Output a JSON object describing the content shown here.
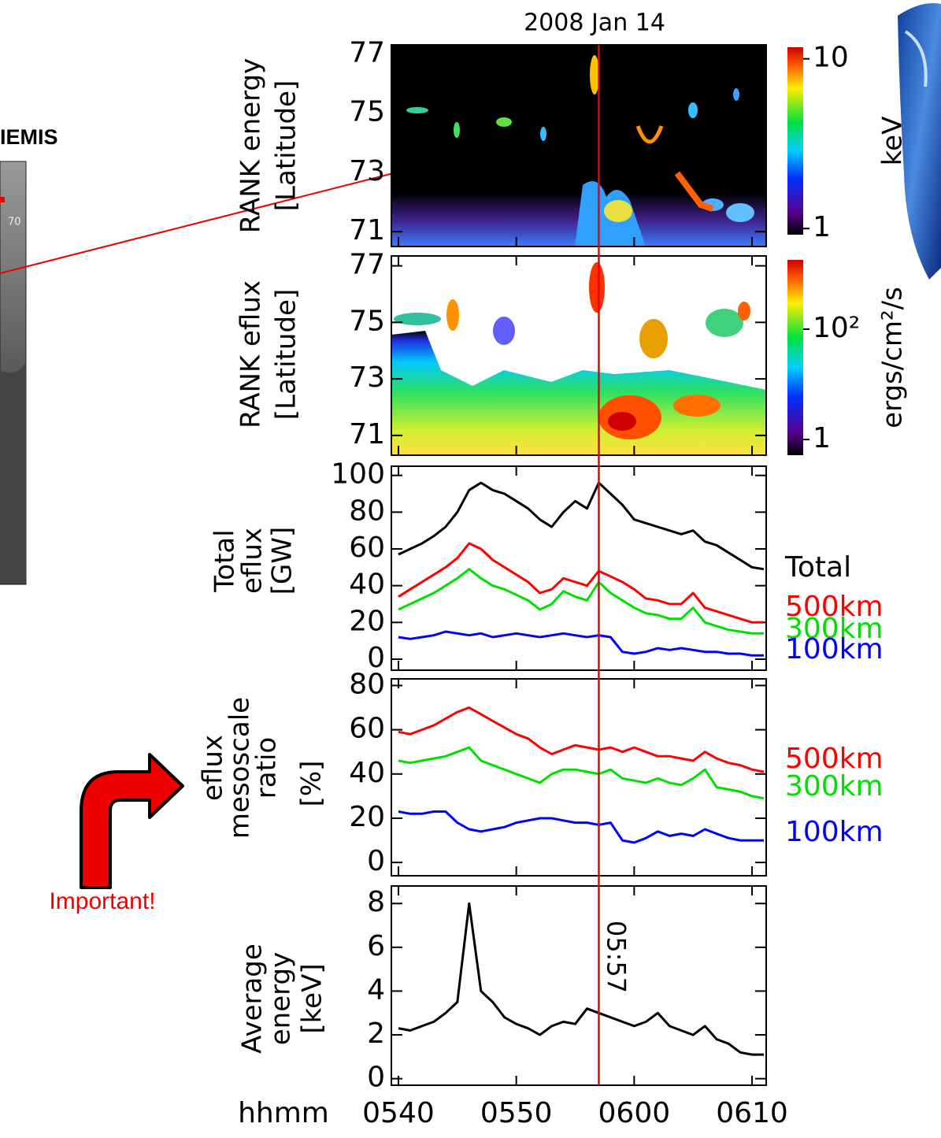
{
  "map": {
    "title": "IEMIS",
    "label": "70"
  },
  "annotation": "Important!",
  "chart_data": [
    {
      "type": "spectrogram",
      "title": "2008 Jan 14",
      "ylabel": [
        "RANK energy",
        "[Latitude]"
      ],
      "ylim": [
        70.5,
        77.3
      ],
      "yticks": [
        71,
        73,
        75,
        77
      ],
      "colorbar": {
        "label": "keV",
        "log": true,
        "lim": [
          0.92,
          11.7
        ],
        "ticks": [
          1,
          10
        ]
      }
    },
    {
      "type": "spectrogram",
      "ylabel": [
        "RANK eflux",
        "[Latitude]"
      ],
      "ylim": [
        70.3,
        77.35
      ],
      "yticks": [
        71,
        73,
        75,
        77
      ],
      "colorbar": {
        "label": "ergs/cm²/s",
        "log": true,
        "lim": [
          0.52,
          1800
        ],
        "ticks": [
          1,
          {
            "value": 100,
            "label": "10²"
          }
        ]
      }
    },
    {
      "type": "line",
      "ylabel": [
        "Total",
        "eflux",
        "[GW]"
      ],
      "ylim": [
        -6,
        105
      ],
      "yticks": [
        0,
        20,
        40,
        60,
        80,
        100
      ],
      "x": [
        340,
        341,
        342,
        343,
        344,
        345,
        346,
        347,
        348,
        349,
        350,
        351,
        352,
        353,
        354,
        355,
        356,
        357,
        358,
        359,
        360,
        361,
        362,
        363,
        364,
        365,
        366,
        367,
        368,
        369,
        370,
        371
      ],
      "series": [
        {
          "name": "Total",
          "color": "#000000",
          "values": [
            57,
            60,
            63,
            67,
            72,
            80,
            92,
            96,
            92,
            90,
            86,
            82,
            76,
            72,
            80,
            86,
            82,
            96,
            90,
            84,
            76,
            74,
            72,
            70,
            68,
            70,
            64,
            62,
            58,
            54,
            50,
            49
          ]
        },
        {
          "name": "500km",
          "color": "#ff0000",
          "values": [
            34,
            38,
            42,
            46,
            50,
            55,
            63,
            60,
            54,
            50,
            46,
            42,
            36,
            38,
            44,
            42,
            40,
            48,
            45,
            42,
            38,
            33,
            32,
            30,
            30,
            36,
            28,
            26,
            24,
            22,
            20,
            20
          ]
        },
        {
          "name": "300km",
          "color": "#00e000",
          "values": [
            27,
            30,
            33,
            36,
            40,
            44,
            49,
            44,
            40,
            38,
            35,
            32,
            27,
            30,
            37,
            34,
            32,
            42,
            36,
            32,
            28,
            25,
            24,
            22,
            22,
            28,
            20,
            18,
            16,
            15,
            14,
            14
          ]
        },
        {
          "name": "100km",
          "color": "#0000ff",
          "values": [
            12,
            11,
            12,
            13,
            15,
            14,
            13,
            14,
            12,
            13,
            14,
            13,
            12,
            13,
            14,
            13,
            12,
            13,
            12,
            4,
            3,
            4,
            6,
            5,
            6,
            5,
            4,
            4,
            3,
            3,
            2,
            2
          ]
        }
      ]
    },
    {
      "type": "line",
      "ylabel": [
        "eflux",
        "mesoscale",
        "ratio",
        "[%]"
      ],
      "ylim": [
        -6,
        83
      ],
      "yticks": [
        0,
        20,
        40,
        60,
        80
      ],
      "x": [
        340,
        341,
        342,
        343,
        344,
        345,
        346,
        347,
        348,
        349,
        350,
        351,
        352,
        353,
        354,
        355,
        356,
        357,
        358,
        359,
        360,
        361,
        362,
        363,
        364,
        365,
        366,
        367,
        368,
        369,
        370,
        371
      ],
      "series": [
        {
          "name": "500km",
          "color": "#ff0000",
          "values": [
            59,
            58,
            60,
            62,
            65,
            68,
            70,
            67,
            64,
            61,
            58,
            56,
            52,
            49,
            51,
            53,
            52,
            51,
            52,
            50,
            52,
            50,
            48,
            48,
            47,
            46,
            50,
            47,
            45,
            44,
            42,
            41
          ]
        },
        {
          "name": "300km",
          "color": "#00e000",
          "values": [
            46,
            45,
            46,
            47,
            48,
            50,
            52,
            46,
            44,
            42,
            40,
            38,
            36,
            40,
            42,
            42,
            41,
            40,
            42,
            38,
            37,
            36,
            38,
            36,
            35,
            38,
            42,
            34,
            33,
            32,
            30,
            29
          ]
        },
        {
          "name": "100km",
          "color": "#0000ff",
          "values": [
            23,
            22,
            22,
            23,
            23,
            18,
            15,
            14,
            15,
            16,
            18,
            19,
            20,
            20,
            19,
            18,
            18,
            17,
            18,
            10,
            9,
            11,
            14,
            12,
            13,
            12,
            15,
            13,
            11,
            10,
            10,
            10
          ]
        }
      ]
    },
    {
      "type": "line",
      "ylabel": [
        "Average",
        "energy",
        "[keV]"
      ],
      "ylim": [
        -0.3,
        8.8
      ],
      "yticks": [
        0,
        2,
        4,
        6,
        8
      ],
      "xlabel": "hhmm",
      "xlim": [
        339.4,
        371.2
      ],
      "xticks": [
        {
          "value": 340,
          "label": "0540"
        },
        {
          "value": 350,
          "label": "0550"
        },
        {
          "value": 360,
          "label": "0600"
        },
        {
          "value": 370,
          "label": "0610"
        }
      ],
      "marker": {
        "x": 357,
        "label": "05:57"
      },
      "x": [
        340,
        341,
        342,
        343,
        344,
        345,
        346,
        347,
        348,
        349,
        350,
        351,
        352,
        353,
        354,
        355,
        356,
        357,
        358,
        359,
        360,
        361,
        362,
        363,
        364,
        365,
        366,
        367,
        368,
        369,
        370,
        371
      ],
      "series": [
        {
          "color": "#000000",
          "values": [
            2.3,
            2.2,
            2.4,
            2.6,
            3.0,
            3.5,
            8.0,
            4.0,
            3.5,
            2.8,
            2.5,
            2.3,
            2.0,
            2.4,
            2.6,
            2.5,
            3.2,
            3.0,
            2.8,
            2.6,
            2.4,
            2.6,
            3.0,
            2.4,
            2.2,
            2.0,
            2.4,
            1.8,
            1.6,
            1.2,
            1.1,
            1.1
          ]
        }
      ]
    }
  ]
}
